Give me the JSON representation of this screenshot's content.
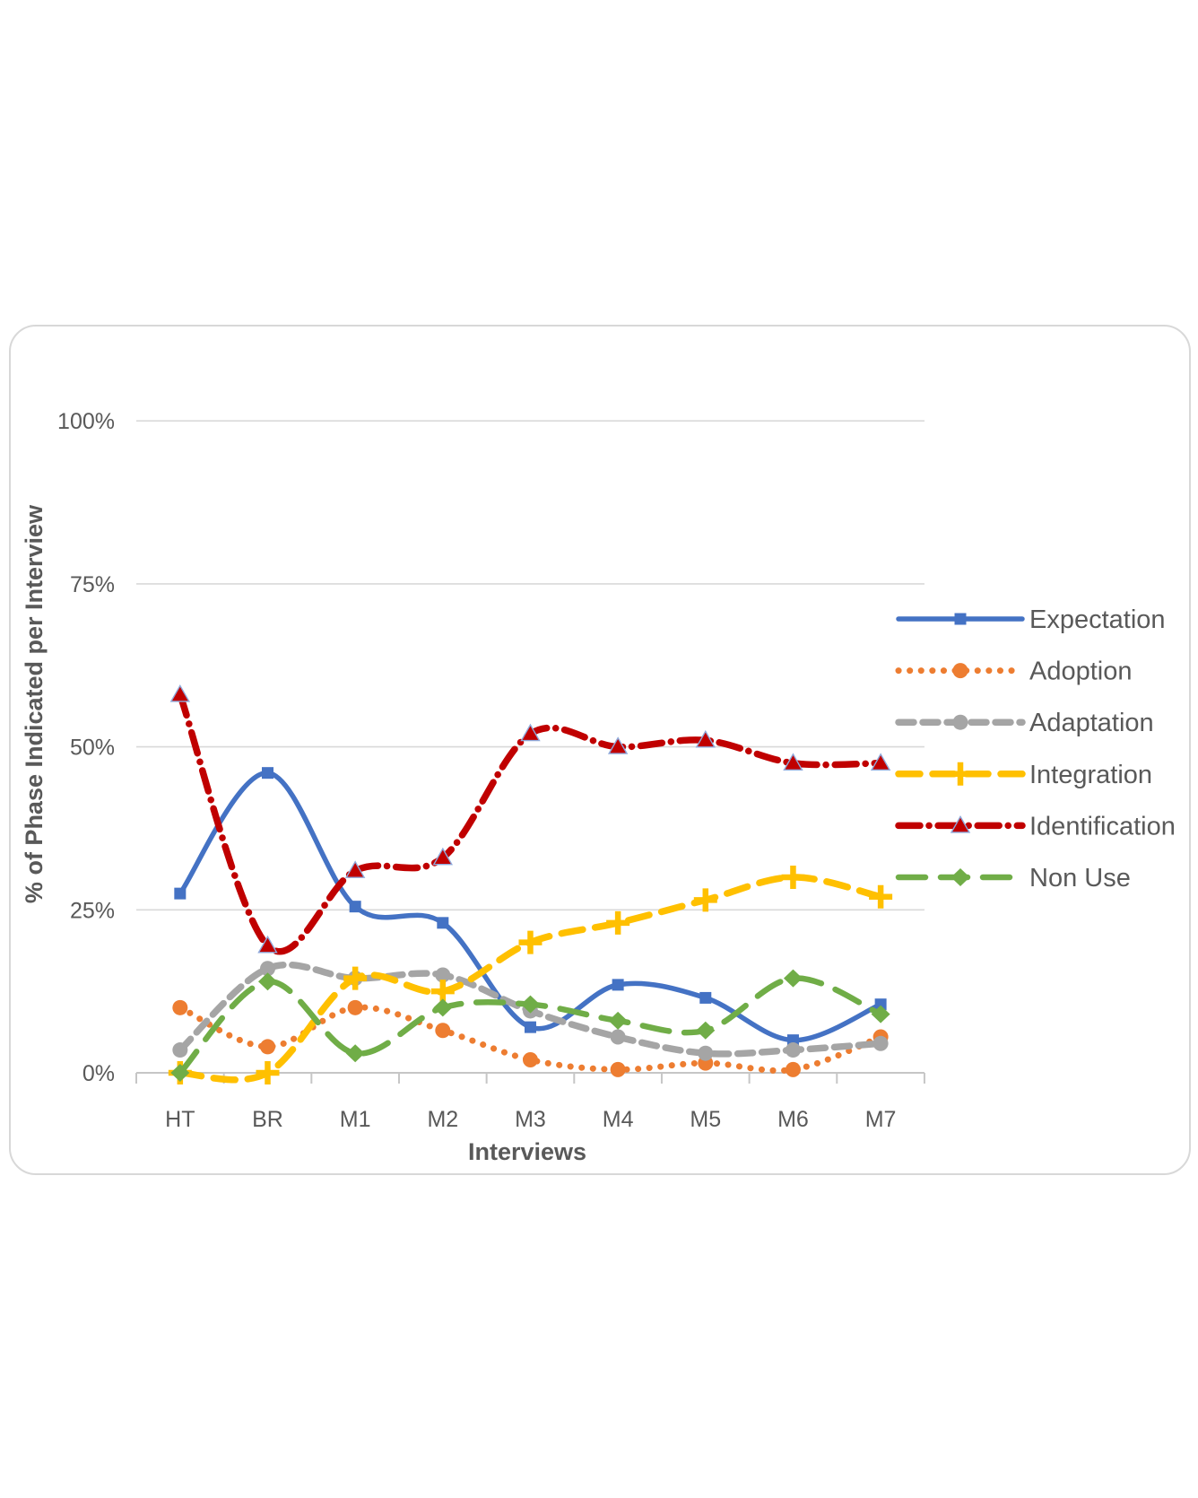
{
  "card": {
    "background": "#ffffff",
    "border_color": "#d8d8d8"
  },
  "chart_data": {
    "type": "line",
    "title": "",
    "xlabel": "Interviews",
    "ylabel": "% of Phase Indicated per Interview",
    "categories": [
      "HT",
      "BR",
      "M1",
      "M2",
      "M3",
      "M4",
      "M5",
      "M6",
      "M7"
    ],
    "y_ticks": [
      {
        "label": "0%",
        "value": 0
      },
      {
        "label": "25%",
        "value": 25
      },
      {
        "label": "50%",
        "value": 50
      },
      {
        "label": "75%",
        "value": 75
      },
      {
        "label": "100%",
        "value": 100
      }
    ],
    "ylim": [
      0,
      100
    ],
    "grid": true,
    "legend_position": "right",
    "colors": {
      "text": "#595959",
      "grid": "#d9d9d9",
      "axis": "#c6c6c6",
      "marker_edge": "#8faadc"
    },
    "series": [
      {
        "name": "Expectation",
        "color": "#4472C4",
        "marker": "square",
        "line": "solid",
        "values": [
          27.5,
          46,
          25.5,
          23,
          7,
          13.5,
          11.5,
          5,
          10.5
        ]
      },
      {
        "name": "Adoption",
        "color": "#ED7D31",
        "marker": "circle",
        "line": "dotted",
        "values": [
          10,
          4,
          10,
          6.5,
          2,
          0.5,
          1.5,
          0.5,
          5.5
        ]
      },
      {
        "name": "Adaptation",
        "color": "#A5A5A5",
        "marker": "circle",
        "line": "dashed",
        "values": [
          3.5,
          16,
          14.5,
          15,
          9.5,
          5.5,
          3,
          3.5,
          4.5
        ]
      },
      {
        "name": "Integration",
        "color": "#FFC000",
        "marker": "plus",
        "line": "dashed-wide",
        "values": [
          0,
          0,
          14.5,
          12.5,
          20,
          23,
          26.5,
          30,
          27
        ]
      },
      {
        "name": "Identification",
        "color": "#C00000",
        "marker": "triangle",
        "line": "dash-dot",
        "values": [
          58,
          19.5,
          31,
          33,
          52,
          50,
          51,
          47.5,
          47.5
        ]
      },
      {
        "name": "Non Use",
        "color": "#70AD47",
        "marker": "diamond",
        "line": "long-dash",
        "values": [
          0,
          14,
          3,
          10,
          10.5,
          8,
          6.5,
          14.5,
          9
        ]
      }
    ]
  }
}
